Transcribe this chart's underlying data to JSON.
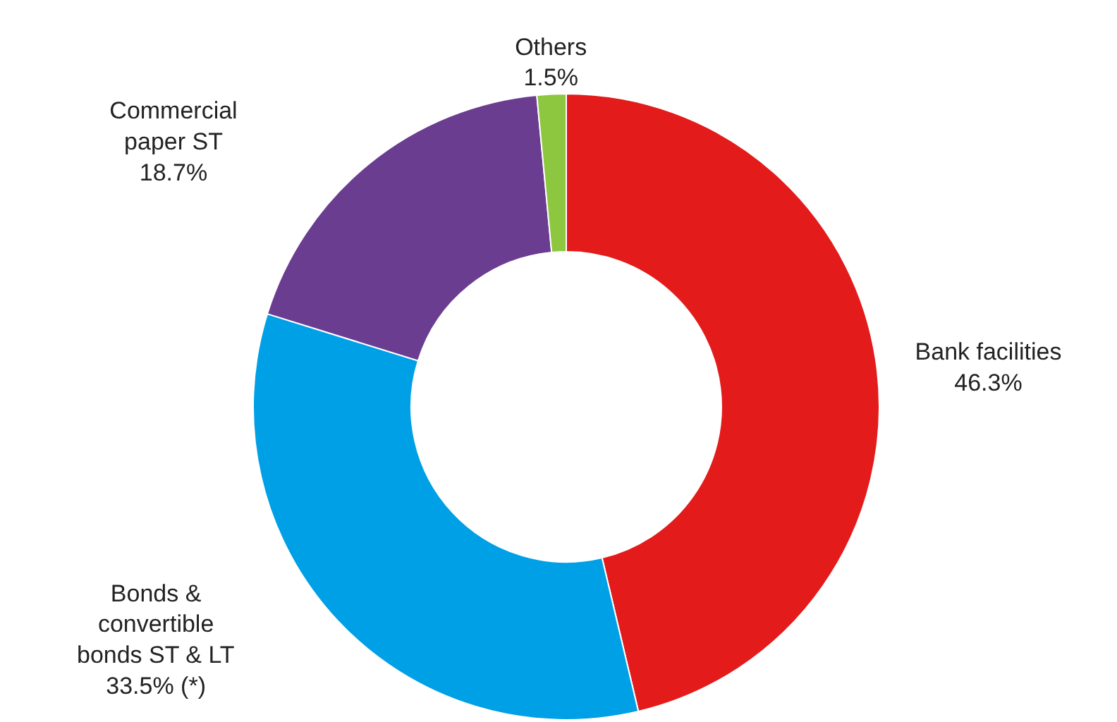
{
  "chart_data": {
    "type": "donut",
    "categories": [
      "Bank facilities",
      "Bonds & convertible bonds ST & LT",
      "Commercial paper ST",
      "Others"
    ],
    "values": [
      46.3,
      33.5,
      18.7,
      1.5
    ],
    "value_labels": [
      "46.3%",
      "33.5% (*)",
      "18.7%",
      "1.5%"
    ],
    "colors": [
      "#e31b1b",
      "#00a0e6",
      "#6a3d91",
      "#8dc63f"
    ],
    "legend": false
  }
}
